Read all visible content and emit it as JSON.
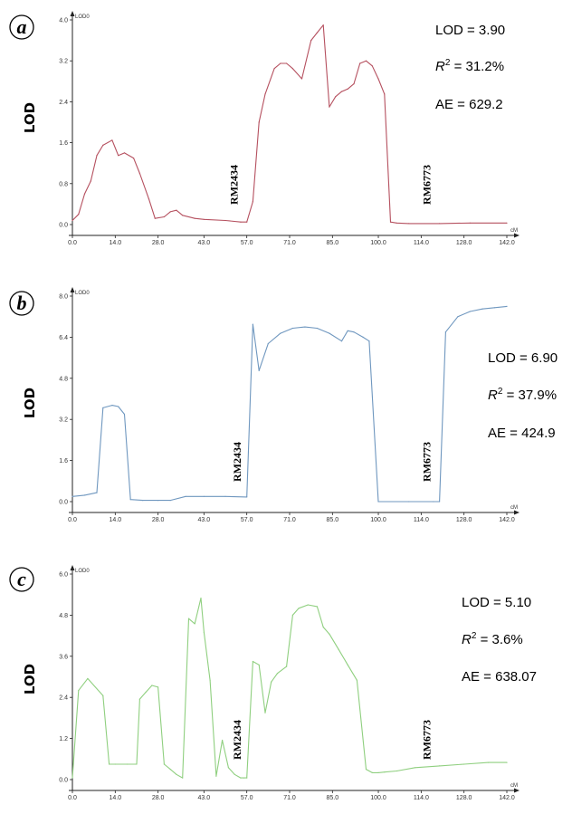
{
  "chart_data": [
    {
      "panel": "a",
      "type": "line",
      "ylabel": "LOD",
      "ylim": [
        0,
        4.0
      ],
      "yticks": [
        "0.0",
        "0.8",
        "1.6",
        "2.4",
        "3.2",
        "4.0"
      ],
      "xlim": [
        0,
        142
      ],
      "xticks": [
        "0.0",
        "14.0",
        "28.0",
        "43.0",
        "57.0",
        "71.0",
        "85.0",
        "100.0",
        "114.0",
        "128.0",
        "142.0"
      ],
      "axis_corner_label": "LOD0",
      "x_unit_label": "cM",
      "color": "#b5505f",
      "markers": [
        {
          "name": "RM2434",
          "x": 54
        },
        {
          "name": "RM6773",
          "x": 117
        }
      ],
      "stats": {
        "lod": "LOD = 3.90",
        "r2_prefix": "R",
        "r2_sup": "2",
        "r2_suffix": " = 31.2%",
        "ae": "AE = 629.2"
      },
      "x": [
        0,
        2,
        4,
        6,
        8,
        10,
        13,
        15,
        17,
        20,
        22,
        25,
        27,
        30,
        32,
        34,
        36,
        40,
        43,
        50,
        55,
        57,
        59,
        61,
        63,
        66,
        68,
        70,
        72,
        75,
        78,
        80,
        82,
        84,
        86,
        88,
        90,
        92,
        94,
        96,
        98,
        100,
        102,
        104,
        106,
        110,
        120,
        130,
        142
      ],
      "y": [
        0.08,
        0.2,
        0.6,
        0.85,
        1.35,
        1.55,
        1.65,
        1.35,
        1.4,
        1.3,
        1.0,
        0.5,
        0.12,
        0.15,
        0.25,
        0.28,
        0.18,
        0.12,
        0.1,
        0.08,
        0.05,
        0.05,
        0.45,
        2.0,
        2.55,
        3.05,
        3.15,
        3.15,
        3.05,
        2.85,
        3.6,
        3.75,
        3.9,
        2.3,
        2.5,
        2.6,
        2.65,
        2.75,
        3.15,
        3.2,
        3.1,
        2.85,
        2.55,
        0.05,
        0.03,
        0.02,
        0.02,
        0.03,
        0.03
      ]
    },
    {
      "panel": "b",
      "type": "line",
      "ylabel": "LOD",
      "ylim": [
        0,
        8.0
      ],
      "yticks": [
        "0.0",
        "1.6",
        "3.2",
        "4.8",
        "6.4",
        "8.0"
      ],
      "xlim": [
        0,
        142
      ],
      "xticks": [
        "0.0",
        "14.0",
        "28.0",
        "43.0",
        "57.0",
        "71.0",
        "85.0",
        "100.0",
        "114.0",
        "128.0",
        "142.0"
      ],
      "axis_corner_label": "LOD0",
      "x_unit_label": "cM",
      "color": "#6f97bf",
      "markers": [
        {
          "name": "RM2434",
          "x": 55
        },
        {
          "name": "RM6773",
          "x": 117
        }
      ],
      "stats": {
        "lod": "LOD = 6.90",
        "r2_prefix": "R",
        "r2_sup": "2",
        "r2_suffix": " = 37.9%",
        "ae": "AE = 424.9"
      },
      "x": [
        0,
        4,
        8,
        10,
        13,
        15,
        17,
        19,
        23,
        28,
        32,
        37,
        43,
        50,
        57,
        59,
        61,
        64,
        68,
        72,
        76,
        80,
        84,
        88,
        90,
        92,
        95,
        97,
        100,
        110,
        118,
        120,
        122,
        126,
        130,
        134,
        138,
        142
      ],
      "y": [
        0.2,
        0.25,
        0.35,
        3.65,
        3.75,
        3.7,
        3.4,
        0.08,
        0.05,
        0.05,
        0.05,
        0.2,
        0.2,
        0.2,
        0.18,
        6.9,
        5.1,
        6.15,
        6.55,
        6.75,
        6.8,
        6.75,
        6.55,
        6.25,
        6.65,
        6.6,
        6.4,
        6.25,
        0.0,
        0.0,
        0.0,
        0.0,
        6.6,
        7.2,
        7.4,
        7.5,
        7.55,
        7.6
      ]
    },
    {
      "panel": "c",
      "type": "line",
      "ylabel": "LOD",
      "ylim": [
        0,
        6.0
      ],
      "yticks": [
        "0.0",
        "1.2",
        "2.4",
        "3.6",
        "4.8",
        "6.0"
      ],
      "xlim": [
        0,
        142
      ],
      "xticks": [
        "0.0",
        "14.0",
        "28.0",
        "43.0",
        "57.0",
        "71.0",
        "85.0",
        "100.0",
        "114.0",
        "128.0",
        "142.0"
      ],
      "axis_corner_label": "LOD0",
      "x_unit_label": "cM",
      "color": "#8fcf7f",
      "markers": [
        {
          "name": "RM2434",
          "x": 55
        },
        {
          "name": "RM6773",
          "x": 117
        }
      ],
      "stats": {
        "lod": "LOD = 5.10",
        "r2_prefix": "R",
        "r2_sup": "2",
        "r2_suffix": " = 3.6%",
        "ae": "AE = 638.07"
      },
      "x": [
        0,
        2,
        5,
        10,
        12,
        14,
        18,
        21,
        22,
        24,
        26,
        28,
        30,
        32,
        34,
        36,
        38,
        40,
        42,
        43,
        45,
        47,
        49,
        51,
        53,
        55,
        56,
        57,
        59,
        61,
        63,
        65,
        67,
        70,
        72,
        74,
        77,
        80,
        82,
        84,
        87,
        90,
        93,
        96,
        98,
        100,
        102,
        106,
        112,
        120,
        128,
        136,
        142
      ],
      "y": [
        0.05,
        2.6,
        2.95,
        2.45,
        0.45,
        0.45,
        0.45,
        0.45,
        2.35,
        2.55,
        2.75,
        2.7,
        0.45,
        0.3,
        0.15,
        0.05,
        4.7,
        4.55,
        5.3,
        4.3,
        2.9,
        0.1,
        1.15,
        0.35,
        0.15,
        0.05,
        0.05,
        0.05,
        3.45,
        3.35,
        1.95,
        2.85,
        3.1,
        3.3,
        4.8,
        5.0,
        5.1,
        5.05,
        4.45,
        4.25,
        3.8,
        3.35,
        2.9,
        0.3,
        0.2,
        0.2,
        0.22,
        0.25,
        0.35,
        0.4,
        0.45,
        0.5,
        0.5
      ]
    }
  ]
}
